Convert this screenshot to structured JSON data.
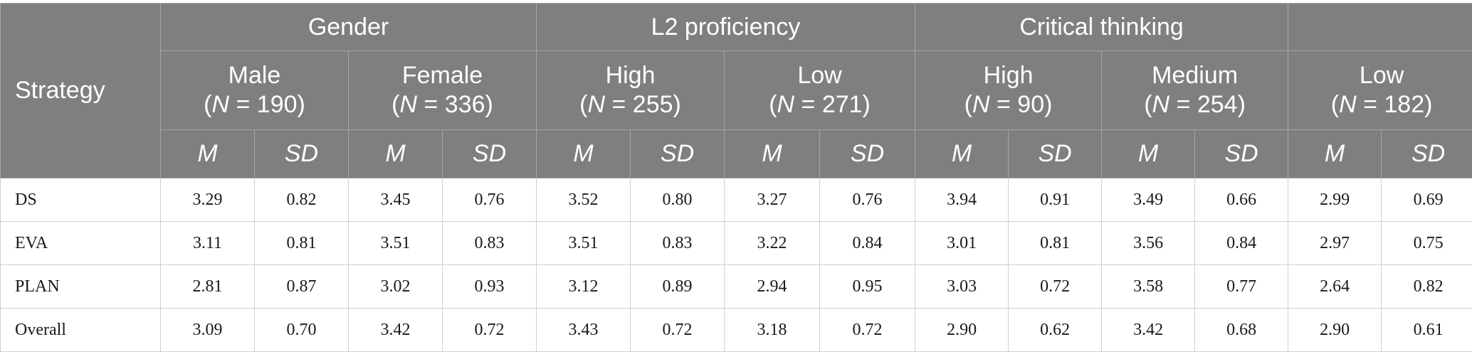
{
  "table": {
    "strategy_header": "Strategy",
    "groups": [
      "Gender",
      "L2 proficiency",
      "Critical thinking",
      ""
    ],
    "subgroups": [
      {
        "label": "Male",
        "n_prefix": "(",
        "n_symbol": "N",
        "n_suffix": " = 190)"
      },
      {
        "label": "Female",
        "n_prefix": "(",
        "n_symbol": "N",
        "n_suffix": " = 336)"
      },
      {
        "label": "High",
        "n_prefix": "(",
        "n_symbol": "N",
        "n_suffix": " = 255)"
      },
      {
        "label": "Low",
        "n_prefix": "(",
        "n_symbol": "N",
        "n_suffix": " = 271)"
      },
      {
        "label": "High",
        "n_prefix": "(",
        "n_symbol": "N",
        "n_suffix": " = 90)"
      },
      {
        "label": "Medium",
        "n_prefix": "(",
        "n_symbol": "N",
        "n_suffix": " = 254)"
      },
      {
        "label": "Low",
        "n_prefix": "(",
        "n_symbol": "N",
        "n_suffix": " = 182)"
      }
    ],
    "stat_labels": [
      "M",
      "SD"
    ],
    "rows": [
      {
        "label": "DS",
        "values": [
          "3.29",
          "0.82",
          "3.45",
          "0.76",
          "3.52",
          "0.80",
          "3.27",
          "0.76",
          "3.94",
          "0.91",
          "3.49",
          "0.66",
          "2.99",
          "0.69"
        ]
      },
      {
        "label": "EVA",
        "values": [
          "3.11",
          "0.81",
          "3.51",
          "0.83",
          "3.51",
          "0.83",
          "3.22",
          "0.84",
          "3.01",
          "0.81",
          "3.56",
          "0.84",
          "2.97",
          "0.75"
        ]
      },
      {
        "label": "PLAN",
        "values": [
          "2.81",
          "0.87",
          "3.02",
          "0.93",
          "3.12",
          "0.89",
          "2.94",
          "0.95",
          "3.03",
          "0.72",
          "3.58",
          "0.77",
          "2.64",
          "0.82"
        ]
      },
      {
        "label": "Overall",
        "values": [
          "3.09",
          "0.70",
          "3.42",
          "0.72",
          "3.43",
          "0.72",
          "3.18",
          "0.72",
          "2.90",
          "0.62",
          "3.42",
          "0.68",
          "2.90",
          "0.61"
        ]
      }
    ]
  }
}
